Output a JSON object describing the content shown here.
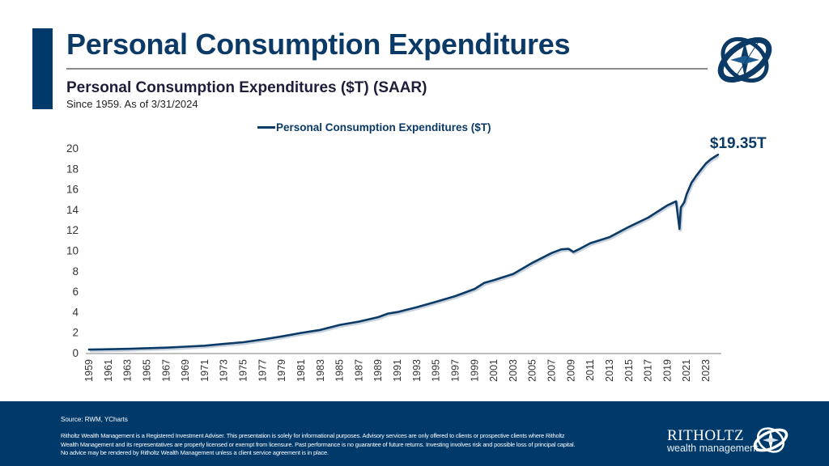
{
  "header": {
    "title": "Personal Consumption Expenditures",
    "subtitle": "Personal Consumption Expenditures ($T) (SAAR)",
    "note": "Since 1959. As of 3/31/2024",
    "logo_icon": "compass-globe-icon"
  },
  "colors": {
    "brand_navy": "#003a6b",
    "line": "#0b3a66",
    "axis": "#9a9a9a",
    "tick_text": "#333333"
  },
  "chart_data": {
    "type": "line",
    "title": "Personal Consumption Expenditures ($T) (SAAR)",
    "xlabel": "",
    "ylabel": "",
    "ylim": [
      0,
      20
    ],
    "xlim": [
      1959,
      2024.25
    ],
    "y_ticks": [
      0,
      2,
      4,
      6,
      8,
      10,
      12,
      14,
      16,
      18,
      20
    ],
    "x_tick_labels": [
      "1959",
      "1961",
      "1963",
      "1965",
      "1967",
      "1969",
      "1971",
      "1973",
      "1975",
      "1977",
      "1979",
      "1981",
      "1983",
      "1985",
      "1987",
      "1989",
      "1991",
      "1993",
      "1995",
      "1997",
      "1999",
      "2001",
      "2003",
      "2005",
      "2007",
      "2009",
      "2011",
      "2013",
      "2015",
      "2017",
      "2019",
      "2021",
      "2023"
    ],
    "grid": false,
    "legend": "top-center",
    "annotation": "$19.35T",
    "series": [
      {
        "name": "Personal Consumption Expenditures ($T)",
        "color": "#0b3a66",
        "x": [
          1959,
          1961,
          1963,
          1965,
          1967,
          1969,
          1971,
          1973,
          1975,
          1977,
          1979,
          1980,
          1981,
          1983,
          1985,
          1987,
          1989,
          1990,
          1991,
          1993,
          1995,
          1997,
          1999,
          2000,
          2001,
          2003,
          2005,
          2007,
          2008,
          2008.75,
          2009.25,
          2010,
          2011,
          2013,
          2015,
          2017,
          2019,
          2019.9,
          2020.25,
          2020.4,
          2020.75,
          2021,
          2021.5,
          2022,
          2022.5,
          2023,
          2023.5,
          2024.25
        ],
        "values": [
          0.31,
          0.34,
          0.38,
          0.44,
          0.5,
          0.59,
          0.69,
          0.86,
          1.03,
          1.3,
          1.6,
          1.76,
          1.94,
          2.23,
          2.72,
          3.04,
          3.48,
          3.83,
          3.98,
          4.45,
          4.98,
          5.53,
          6.24,
          6.83,
          7.1,
          7.7,
          8.79,
          9.75,
          10.1,
          10.15,
          9.85,
          10.2,
          10.7,
          11.3,
          12.3,
          13.2,
          14.4,
          14.8,
          12.1,
          14.2,
          14.7,
          15.5,
          16.6,
          17.3,
          17.9,
          18.5,
          18.9,
          19.35
        ]
      }
    ]
  },
  "footer": {
    "source": "Source: RWM, YCharts",
    "disclaimer": "Ritholtz Wealth Management is a Registered Investment Adviser. This presentation is solely for informational purposes. Advisory services are only offered to clients or prospective clients where Ritholtz Wealth Management and its representatives are properly licensed or exempt from licensure. Past performance is no guarantee of future returns. Investing involves risk and possible loss of principal capital. No advice may be rendered by Ritholtz Wealth Management unless a client service agreement is in place.",
    "brand": "RITHOLTZ",
    "brand_tagline": "wealth management"
  }
}
